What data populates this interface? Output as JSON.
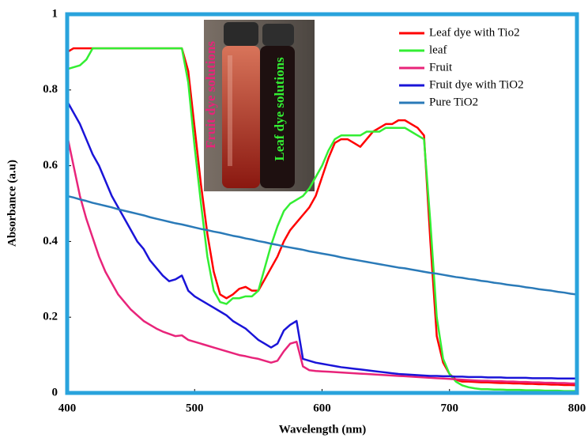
{
  "chart_data": {
    "type": "line",
    "xlabel": "Wavelength (nm)",
    "ylabel": "Absorbance (a.u)",
    "xlim": [
      400,
      800
    ],
    "ylim": [
      0,
      1
    ],
    "xticks": [
      400,
      500,
      600,
      700,
      800
    ],
    "yticks": [
      0,
      0.2,
      0.4,
      0.6,
      0.8,
      1
    ],
    "legend": "upper right",
    "annotations": [
      {
        "text": "Fruit dye solutions",
        "color": "#e8247a"
      },
      {
        "text": "Leaf dye solutions",
        "color": "#33ee33"
      }
    ],
    "x": [
      400,
      405,
      410,
      415,
      420,
      425,
      430,
      435,
      440,
      445,
      450,
      455,
      460,
      465,
      470,
      475,
      480,
      485,
      490,
      495,
      500,
      505,
      510,
      515,
      520,
      525,
      530,
      535,
      540,
      545,
      550,
      555,
      560,
      565,
      570,
      575,
      580,
      585,
      590,
      595,
      600,
      605,
      610,
      615,
      620,
      625,
      630,
      635,
      640,
      645,
      650,
      655,
      660,
      665,
      670,
      675,
      680,
      685,
      690,
      695,
      700,
      705,
      710,
      715,
      720,
      725,
      730,
      735,
      740,
      745,
      750,
      755,
      760,
      765,
      770,
      775,
      780,
      785,
      790,
      795,
      800
    ],
    "series": [
      {
        "name": "Leaf dye with Tio2",
        "color": "#ff0000",
        "values": [
          0.9,
          0.91,
          0.91,
          0.91,
          0.91,
          0.91,
          0.91,
          0.91,
          0.91,
          0.91,
          0.91,
          0.91,
          0.91,
          0.91,
          0.91,
          0.91,
          0.91,
          0.91,
          0.91,
          0.85,
          0.7,
          0.55,
          0.42,
          0.32,
          0.26,
          0.25,
          0.26,
          0.275,
          0.28,
          0.27,
          0.27,
          0.3,
          0.33,
          0.36,
          0.4,
          0.43,
          0.45,
          0.47,
          0.49,
          0.52,
          0.57,
          0.62,
          0.66,
          0.67,
          0.67,
          0.66,
          0.65,
          0.67,
          0.69,
          0.7,
          0.71,
          0.71,
          0.72,
          0.72,
          0.71,
          0.7,
          0.68,
          0.4,
          0.15,
          0.08,
          0.05,
          0.035,
          0.03,
          0.03,
          0.029,
          0.028,
          0.028,
          0.027,
          0.026,
          0.026,
          0.025,
          0.025,
          0.024,
          0.024,
          0.023,
          0.023,
          0.022,
          0.022,
          0.021,
          0.021,
          0.02
        ]
      },
      {
        "name": "leaf",
        "color": "#33ee33",
        "values": [
          0.855,
          0.86,
          0.865,
          0.88,
          0.91,
          0.91,
          0.91,
          0.91,
          0.91,
          0.91,
          0.91,
          0.91,
          0.91,
          0.91,
          0.91,
          0.91,
          0.91,
          0.91,
          0.91,
          0.82,
          0.65,
          0.5,
          0.36,
          0.27,
          0.24,
          0.235,
          0.25,
          0.25,
          0.255,
          0.255,
          0.27,
          0.33,
          0.39,
          0.44,
          0.48,
          0.5,
          0.51,
          0.52,
          0.54,
          0.57,
          0.6,
          0.64,
          0.67,
          0.68,
          0.68,
          0.68,
          0.68,
          0.69,
          0.69,
          0.69,
          0.7,
          0.7,
          0.7,
          0.7,
          0.69,
          0.68,
          0.67,
          0.45,
          0.2,
          0.09,
          0.05,
          0.03,
          0.02,
          0.015,
          0.012,
          0.01,
          0.01,
          0.009,
          0.009,
          0.008,
          0.008,
          0.008,
          0.007,
          0.007,
          0.007,
          0.006,
          0.006,
          0.006,
          0.005,
          0.005,
          0.005
        ]
      },
      {
        "name": "Fruit",
        "color": "#e8247a",
        "values": [
          0.68,
          0.6,
          0.52,
          0.46,
          0.41,
          0.36,
          0.32,
          0.29,
          0.26,
          0.24,
          0.22,
          0.205,
          0.19,
          0.18,
          0.17,
          0.162,
          0.156,
          0.15,
          0.152,
          0.14,
          0.135,
          0.13,
          0.125,
          0.12,
          0.115,
          0.11,
          0.105,
          0.1,
          0.097,
          0.093,
          0.09,
          0.085,
          0.08,
          0.085,
          0.11,
          0.13,
          0.135,
          0.07,
          0.06,
          0.058,
          0.057,
          0.056,
          0.055,
          0.054,
          0.053,
          0.052,
          0.051,
          0.05,
          0.049,
          0.048,
          0.047,
          0.046,
          0.045,
          0.044,
          0.043,
          0.042,
          0.041,
          0.04,
          0.039,
          0.038,
          0.037,
          0.036,
          0.035,
          0.034,
          0.033,
          0.032,
          0.032,
          0.031,
          0.031,
          0.03,
          0.03,
          0.029,
          0.029,
          0.028,
          0.028,
          0.027,
          0.027,
          0.026,
          0.026,
          0.025,
          0.025
        ]
      },
      {
        "name": "Fruit dye with TiO2",
        "color": "#1a14d8",
        "values": [
          0.77,
          0.74,
          0.71,
          0.67,
          0.63,
          0.6,
          0.56,
          0.52,
          0.49,
          0.46,
          0.43,
          0.4,
          0.38,
          0.35,
          0.33,
          0.31,
          0.295,
          0.3,
          0.31,
          0.27,
          0.255,
          0.245,
          0.235,
          0.225,
          0.215,
          0.205,
          0.19,
          0.18,
          0.17,
          0.155,
          0.14,
          0.13,
          0.12,
          0.13,
          0.165,
          0.18,
          0.19,
          0.09,
          0.085,
          0.08,
          0.077,
          0.074,
          0.071,
          0.068,
          0.066,
          0.064,
          0.062,
          0.06,
          0.058,
          0.056,
          0.054,
          0.052,
          0.05,
          0.049,
          0.048,
          0.047,
          0.046,
          0.045,
          0.045,
          0.044,
          0.044,
          0.043,
          0.043,
          0.042,
          0.042,
          0.042,
          0.041,
          0.041,
          0.041,
          0.04,
          0.04,
          0.04,
          0.04,
          0.039,
          0.039,
          0.039,
          0.039,
          0.038,
          0.038,
          0.038,
          0.038
        ]
      },
      {
        "name": "Pure TiO2",
        "color": "#2a7ab8",
        "values": [
          0.52,
          0.516,
          0.511,
          0.507,
          0.502,
          0.498,
          0.494,
          0.49,
          0.485,
          0.481,
          0.477,
          0.473,
          0.469,
          0.464,
          0.46,
          0.456,
          0.452,
          0.448,
          0.445,
          0.441,
          0.437,
          0.433,
          0.43,
          0.426,
          0.423,
          0.419,
          0.415,
          0.412,
          0.408,
          0.405,
          0.401,
          0.398,
          0.394,
          0.391,
          0.387,
          0.384,
          0.381,
          0.378,
          0.374,
          0.371,
          0.368,
          0.365,
          0.362,
          0.358,
          0.355,
          0.352,
          0.349,
          0.346,
          0.343,
          0.34,
          0.337,
          0.334,
          0.331,
          0.329,
          0.326,
          0.323,
          0.32,
          0.317,
          0.315,
          0.312,
          0.309,
          0.306,
          0.304,
          0.301,
          0.299,
          0.296,
          0.294,
          0.291,
          0.289,
          0.286,
          0.284,
          0.282,
          0.279,
          0.277,
          0.274,
          0.272,
          0.27,
          0.267,
          0.265,
          0.262,
          0.26
        ]
      }
    ]
  }
}
